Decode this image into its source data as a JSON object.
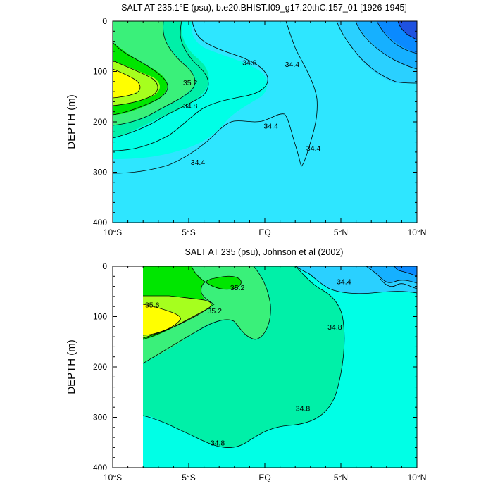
{
  "chart_data": [
    {
      "type": "contour",
      "title": "SALT AT 235.1°E (psu), b.e20.BHIST.f09_g17.20thC.157_01 [1926-1945]",
      "xlabel": "",
      "ylabel": "DEPTH (m)",
      "xlim": [
        -10,
        10
      ],
      "ylim": [
        400,
        0
      ],
      "x_ticks": [
        -10,
        -5,
        0,
        5,
        10
      ],
      "x_tick_labels": [
        "10°S",
        "5°S",
        "EQ",
        "5°N",
        "10°N"
      ],
      "y_ticks": [
        0,
        100,
        200,
        300,
        400
      ],
      "y_tick_labels": [
        "0",
        "100",
        "200",
        "300",
        "400"
      ],
      "contour_labels": [
        {
          "text": "34.8",
          "lat": -1.0,
          "depth": 82
        },
        {
          "text": "34.4",
          "lat": 1.8,
          "depth": 85
        },
        {
          "text": "35.2",
          "lat": -4.9,
          "depth": 122
        },
        {
          "text": "34.8",
          "lat": -4.9,
          "depth": 168
        },
        {
          "text": "34.4",
          "lat": 0.4,
          "depth": 208
        },
        {
          "text": "34.4",
          "lat": 3.2,
          "depth": 252
        },
        {
          "text": "34.4",
          "lat": -4.4,
          "depth": 280
        }
      ],
      "colors": {
        "deep_blue": "#1f52e0",
        "blue_1": "#0a8aff",
        "blue_2": "#16b0ff",
        "light_blue": "#2ad0ff",
        "cyan": "#2ee6ff",
        "aqua": "#00ffe6",
        "mint": "#00f0a8",
        "green_1": "#3af07a",
        "green_2": "#00e600",
        "lime": "#a6ff1e",
        "yellow": "#ffff00"
      }
    },
    {
      "type": "contour",
      "title": "SALT AT 235 (psu), Johnson et al (2002)",
      "xlabel": "",
      "ylabel": "DEPTH (m)",
      "xlim": [
        -10,
        10
      ],
      "ylim": [
        400,
        0
      ],
      "x_ticks": [
        -10,
        -5,
        0,
        5,
        10
      ],
      "x_tick_labels": [
        "10°S",
        "5°S",
        "EQ",
        "5°N",
        "10°N"
      ],
      "y_ticks": [
        0,
        100,
        200,
        300,
        400
      ],
      "y_tick_labels": [
        "0",
        "100",
        "200",
        "300",
        "400"
      ],
      "data_extent_lat": [
        -8,
        10
      ],
      "contour_labels": [
        {
          "text": "35.6",
          "lat": -7.4,
          "depth": 76
        },
        {
          "text": "35.2",
          "lat": -1.8,
          "depth": 42
        },
        {
          "text": "35.2",
          "lat": -3.3,
          "depth": 88
        },
        {
          "text": "34.4",
          "lat": 5.2,
          "depth": 30
        },
        {
          "text": "34.8",
          "lat": 4.6,
          "depth": 120
        },
        {
          "text": "34.8",
          "lat": 2.5,
          "depth": 282
        },
        {
          "text": "34.8",
          "lat": -3.1,
          "depth": 350
        }
      ]
    }
  ]
}
